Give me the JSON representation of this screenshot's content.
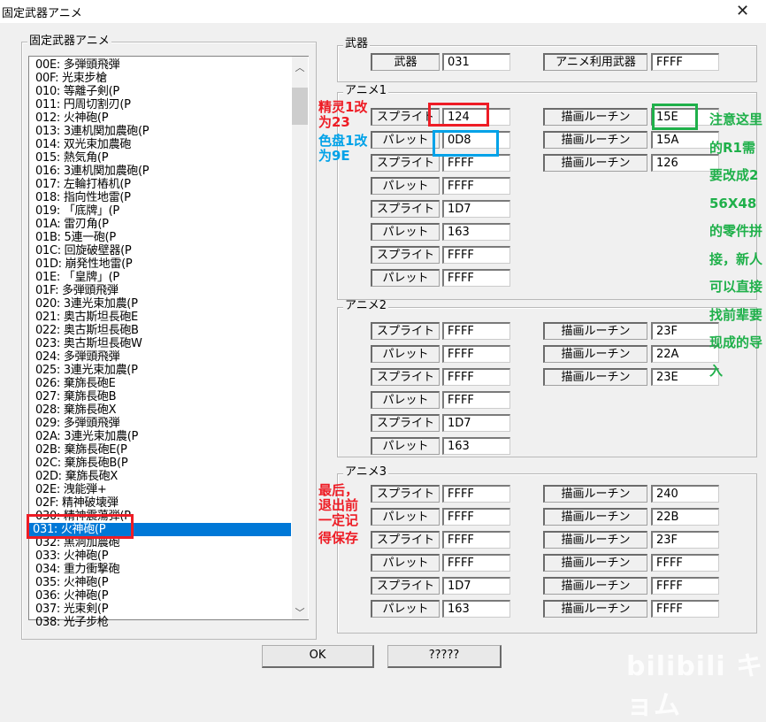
{
  "window": {
    "title": "固定武器アニメ",
    "close_icon": "close-icon"
  },
  "list_group": {
    "title": "固定武器アニメ",
    "items": [
      "00E: 多弾頭飛弾",
      "00F: 光束步槍",
      "010: 等離子剣(P",
      "011: 円周切割刃(P",
      "012: 火神砲(P",
      "013: 3連机関加農砲(P",
      "014: 双光束加農砲",
      "015: 熱気角(P",
      "016: 3連机関加農砲(P",
      "017: 左輪打樁机(P",
      "018: 指向性地雷(P",
      "019: 「底牌」(P",
      "01A: 雷刃角(P",
      "01B: 5連一砲(P",
      "01C: 回旋破壁器(P",
      "01D: 崩発性地雷(P",
      "01E: 「皇牌」(P",
      "01F: 多弾頭飛弾",
      "020: 3連光束加農(P",
      "021: 奥古斯坦長砲E",
      "022: 奥古斯坦長砲B",
      "023: 奥古斯坦長砲W",
      "024: 多弾頭飛弾",
      "025: 3連光束加農(P",
      "026: 棄旆長砲E",
      "027: 棄旆長砲B",
      "028: 棄旆長砲X",
      "029: 多弾頭飛弾",
      "02A: 3連光束加農(P",
      "02B: 棄旆長砲E(P",
      "02C: 棄旆長砲B(P",
      "02D: 棄旆長砲X",
      "02E: 洩能弾+",
      "02F: 精神破壊弾",
      "030: 精神震蕩弾(P",
      "031: 火神砲(P",
      "032: 黒洞加農砲",
      "033: 火神砲(P",
      "034: 重力衝撃砲",
      "035: 火神砲(P",
      "036: 火神砲(P",
      "037: 光束剣(P",
      "038: 光子步枪"
    ],
    "selected_index": 35
  },
  "weapon_group": {
    "title": "武器",
    "weapon_label": "武器",
    "weapon_value": "031",
    "anim_weapon_label": "アニメ利用武器",
    "anim_weapon_value": "FFFF"
  },
  "anime_groups": [
    {
      "title": "アニメ1",
      "left": [
        [
          "スプライト",
          "124"
        ],
        [
          "パレット",
          "0D8"
        ],
        [
          "スプライト",
          "FFFF"
        ],
        [
          "パレット",
          "FFFF"
        ],
        [
          "スプライト",
          "1D7"
        ],
        [
          "パレット",
          "163"
        ],
        [
          "スプライト",
          "FFFF"
        ],
        [
          "パレット",
          "FFFF"
        ]
      ],
      "right": [
        [
          "描画ルーチン",
          "15E"
        ],
        [
          "描画ルーチン",
          "15A"
        ],
        [
          "描画ルーチン",
          "126"
        ]
      ]
    },
    {
      "title": "アニメ2",
      "left": [
        [
          "スプライト",
          "FFFF"
        ],
        [
          "パレット",
          "FFFF"
        ],
        [
          "スプライト",
          "FFFF"
        ],
        [
          "パレット",
          "FFFF"
        ],
        [
          "スプライト",
          "1D7"
        ],
        [
          "パレット",
          "163"
        ]
      ],
      "right": [
        [
          "描画ルーチン",
          "23F"
        ],
        [
          "描画ルーチン",
          "22A"
        ],
        [
          "描画ルーチン",
          "23E"
        ]
      ]
    },
    {
      "title": "アニメ3",
      "left": [
        [
          "スプライト",
          "FFFF"
        ],
        [
          "パレット",
          "FFFF"
        ],
        [
          "スプライト",
          "FFFF"
        ],
        [
          "パレット",
          "FFFF"
        ],
        [
          "スプライト",
          "1D7"
        ],
        [
          "パレット",
          "163"
        ]
      ],
      "right": [
        [
          "描画ルーチン",
          "240"
        ],
        [
          "描画ルーチン",
          "22B"
        ],
        [
          "描画ルーチン",
          "23F"
        ],
        [
          "描画ルーチン",
          "FFFF"
        ],
        [
          "描画ルーチン",
          "FFFF"
        ],
        [
          "描画ルーチン",
          "FFFF"
        ]
      ]
    }
  ],
  "buttons": {
    "ok": "OK",
    "unknown": "?????"
  },
  "annotations": {
    "sprite_note": "精灵1改为23",
    "palette_note": "色盘1改为9E",
    "r1_note": "注意这里的R1需要改成256X48的零件拼接，新人可以直接找前辈要现成的导入",
    "save_note_1": "最后，退出前一定记",
    "save_note_2": "得保存",
    "colors": {
      "red": "#ee1c25",
      "blue": "#00a2e8",
      "green": "#1fb04a"
    }
  },
  "watermark": "bilibili キョム"
}
